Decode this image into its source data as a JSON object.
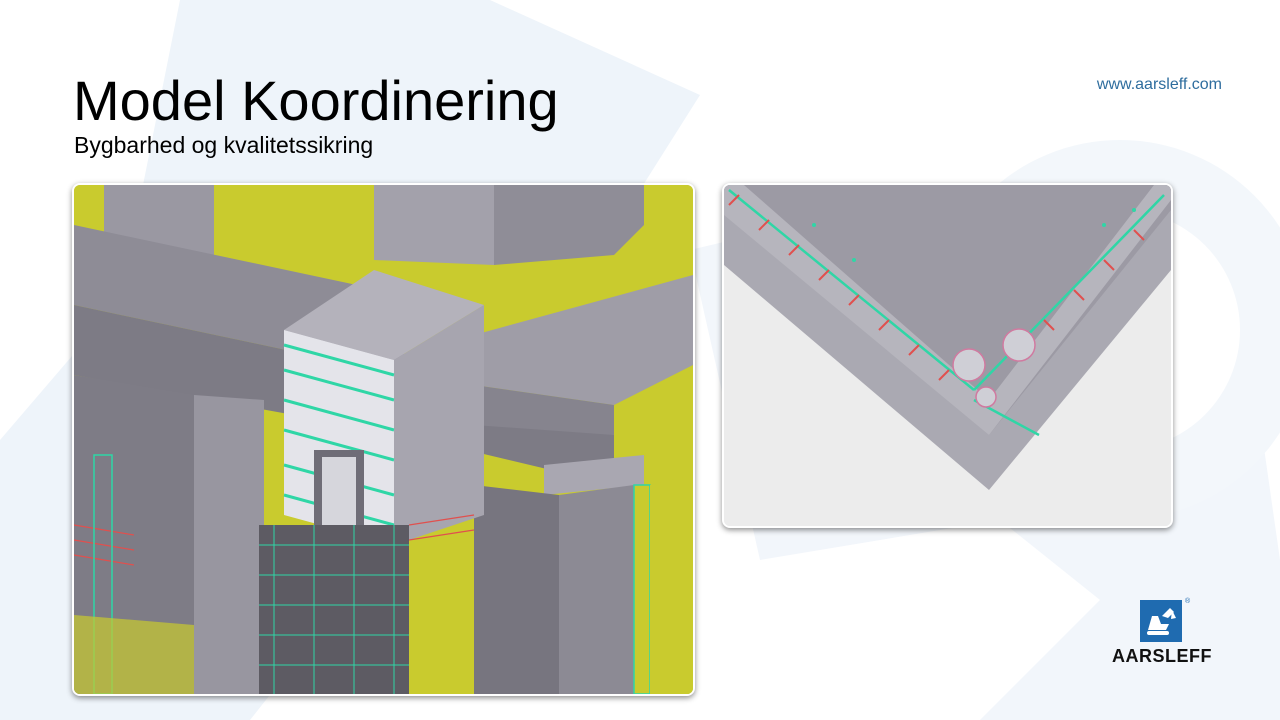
{
  "slide": {
    "title": "Model Koordinering",
    "subtitle": "Bygbarhed og kvalitetssikring",
    "website": "www.aarsleff.com"
  },
  "images": {
    "left": "bim-model-3d-view",
    "right": "bim-model-rebar-corner-detail"
  },
  "logo": {
    "name": "AARSLEFF",
    "registered_mark": "®",
    "icon": "excavator-logo-icon"
  },
  "colors": {
    "title": "#000000",
    "website": "#2e6d9e",
    "logo_blue": "#1f6bb0",
    "model_yellow": "#c9cb2e",
    "model_grey": "#8e8c96",
    "rebar_green": "#2fd6a6",
    "rebar_red": "#e0504e",
    "background_shape": "#eef4fa"
  }
}
